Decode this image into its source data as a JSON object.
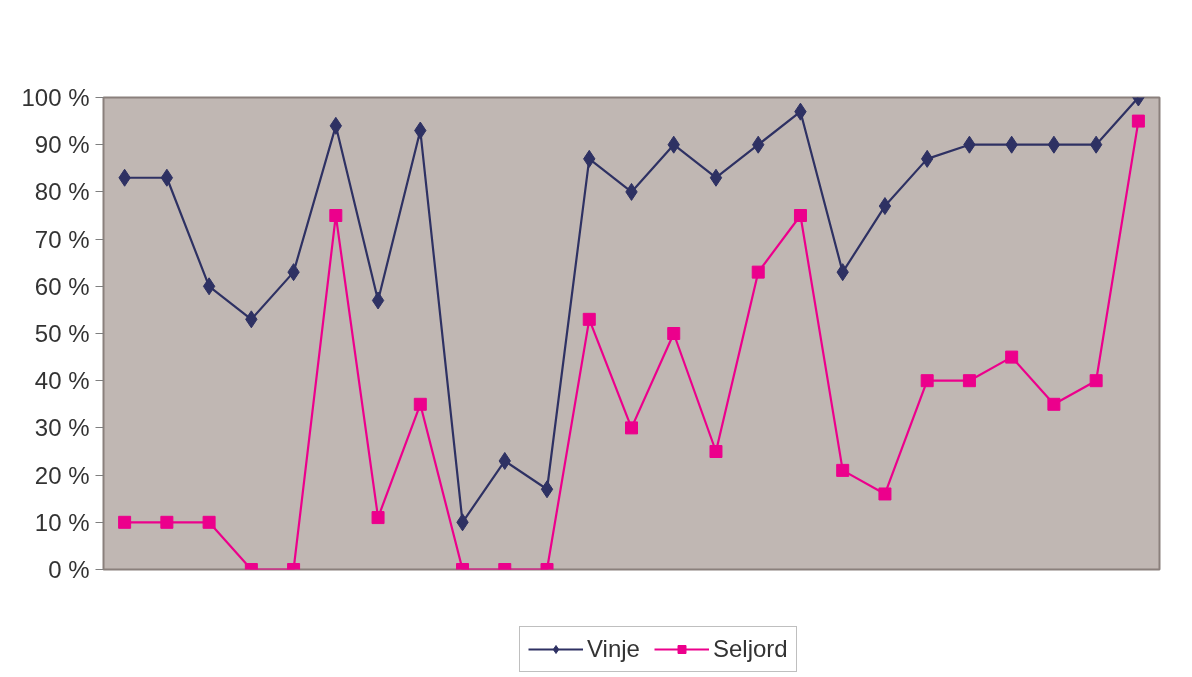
{
  "chart_data": {
    "type": "line",
    "categories": [
      null,
      null,
      null,
      null,
      null,
      null,
      null,
      null,
      null,
      null,
      null,
      null,
      null,
      null,
      null,
      null,
      null,
      null,
      null,
      null,
      null,
      null,
      null,
      null,
      null
    ],
    "series": [
      {
        "name": "Vinje",
        "color": "#2e3163",
        "marker": "diamond",
        "values": [
          83,
          83,
          60,
          53,
          63,
          94,
          57,
          93,
          10,
          23,
          17,
          87,
          80,
          90,
          83,
          90,
          97,
          63,
          77,
          87,
          90,
          90,
          90,
          90,
          100
        ]
      },
      {
        "name": "Seljord",
        "color": "#ec008c",
        "marker": "square",
        "values": [
          10,
          10,
          10,
          0,
          0,
          75,
          11,
          35,
          0,
          0,
          0,
          53,
          30,
          50,
          25,
          63,
          75,
          21,
          16,
          40,
          40,
          45,
          35,
          40,
          95
        ]
      }
    ],
    "ylim": [
      0,
      100
    ],
    "yticks": [
      {
        "value": 0,
        "label": "0 %"
      },
      {
        "value": 10,
        "label": "10 %"
      },
      {
        "value": 20,
        "label": "20 %"
      },
      {
        "value": 30,
        "label": "30 %"
      },
      {
        "value": 40,
        "label": "40 %"
      },
      {
        "value": 50,
        "label": "50 %"
      },
      {
        "value": 60,
        "label": "60 %"
      },
      {
        "value": 70,
        "label": "70 %"
      },
      {
        "value": 80,
        "label": "80 %"
      },
      {
        "value": 90,
        "label": "90 %"
      },
      {
        "value": 100,
        "label": "100 %"
      }
    ],
    "legend": "bottom"
  }
}
